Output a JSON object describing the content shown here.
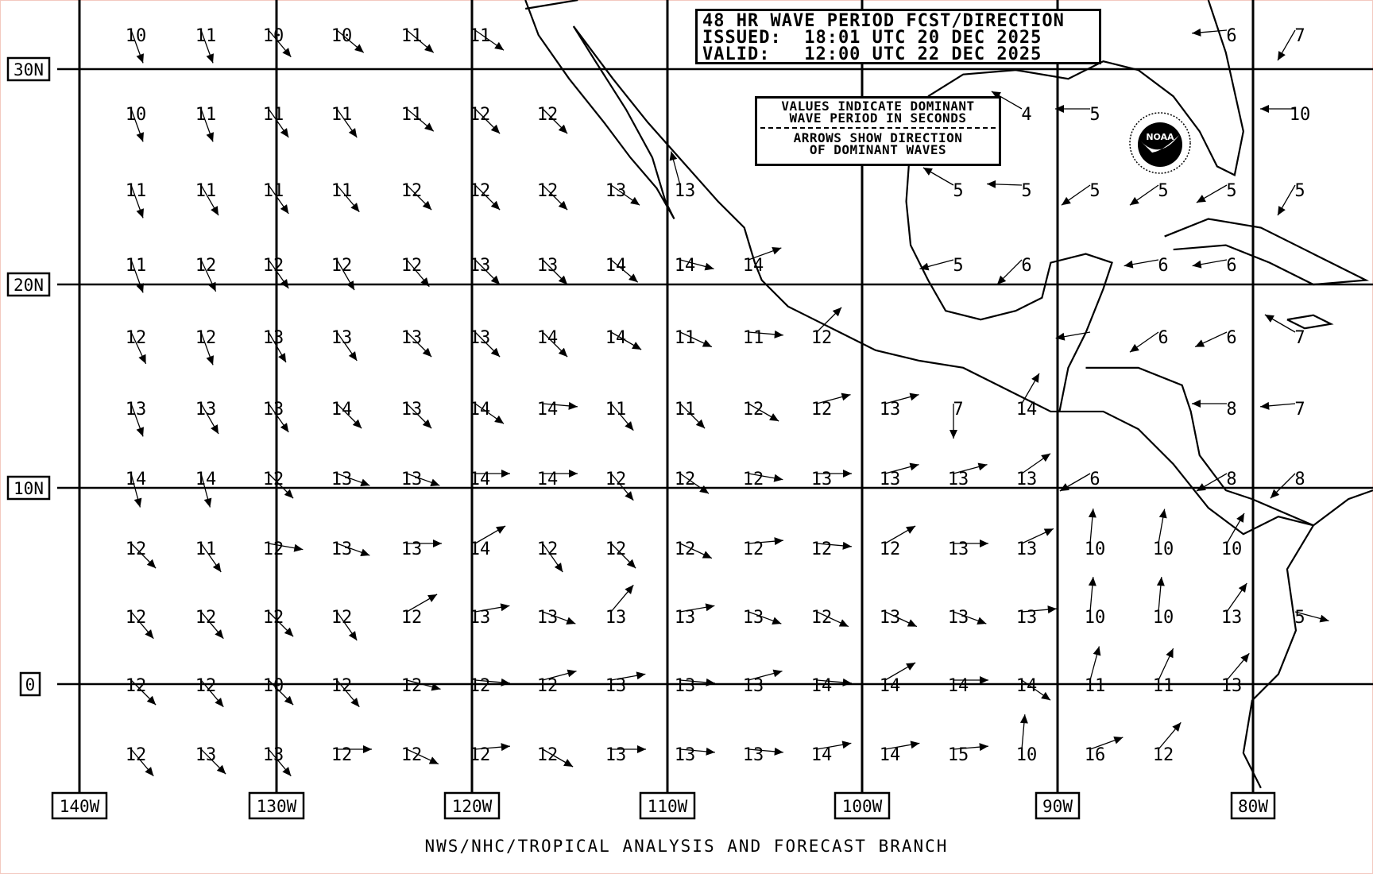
{
  "title": {
    "line1": "48 HR WAVE PERIOD FCST/DIRECTION",
    "line2": "ISSUED:  18:01 UTC 20 DEC 2025",
    "line3": "VALID:   12:00 UTC 22 DEC 2025"
  },
  "legend": {
    "line1": "VALUES INDICATE DOMINANT",
    "line2": "WAVE PERIOD IN SECONDS",
    "line3": "ARROWS SHOW DIRECTION",
    "line4": "OF DOMINANT WAVES"
  },
  "footer": "NWS/NHC/TROPICAL ANALYSIS AND FORECAST BRANCH",
  "logo_text": "NOAA",
  "lat_labels": [
    "30N",
    "20N",
    "10N",
    "0"
  ],
  "lon_labels": [
    "140W",
    "130W",
    "120W",
    "110W",
    "100W",
    "90W",
    "80W"
  ],
  "chart_data": {
    "type": "map",
    "description_units": "values = dominant wave period (s); dir = compass direction arrow points toward (deg)",
    "rows": [
      [
        [
          10,
          160
        ],
        [
          11,
          160
        ],
        [
          10,
          140
        ],
        [
          10,
          130
        ],
        [
          11,
          130
        ],
        [
          11,
          125
        ],
        null,
        null,
        null,
        null,
        null,
        null,
        null,
        null,
        null,
        null,
        [
          6,
          265
        ],
        [
          7,
          210
        ]
      ],
      [
        [
          10,
          160
        ],
        [
          11,
          160
        ],
        [
          11,
          145
        ],
        [
          11,
          145
        ],
        [
          11,
          130
        ],
        [
          12,
          135
        ],
        [
          12,
          135
        ],
        null,
        null,
        null,
        null,
        null,
        null,
        [
          4,
          300
        ],
        [
          5,
          270
        ],
        null,
        null,
        [
          10,
          270
        ]
      ],
      [
        [
          11,
          160
        ],
        [
          11,
          150
        ],
        [
          11,
          145
        ],
        [
          11,
          140
        ],
        [
          12,
          135
        ],
        [
          12,
          135
        ],
        [
          12,
          135
        ],
        [
          13,
          125
        ],
        [
          13,
          345
        ],
        null,
        null,
        null,
        [
          5,
          300
        ],
        [
          5,
          272
        ],
        [
          5,
          235
        ],
        [
          5,
          235
        ],
        [
          5,
          240
        ],
        [
          5,
          210
        ]
      ],
      [
        [
          11,
          160
        ],
        [
          12,
          155
        ],
        [
          12,
          145
        ],
        [
          12,
          150
        ],
        [
          12,
          140
        ],
        [
          13,
          135
        ],
        [
          13,
          135
        ],
        [
          14,
          130
        ],
        [
          14,
          105
        ],
        [
          14,
          70
        ],
        null,
        null,
        [
          5,
          255
        ],
        [
          6,
          225
        ],
        null,
        [
          6,
          260
        ],
        [
          6,
          260
        ],
        null
      ],
      [
        [
          12,
          155
        ],
        [
          12,
          160
        ],
        [
          13,
          150
        ],
        [
          13,
          145
        ],
        [
          13,
          135
        ],
        [
          13,
          135
        ],
        [
          14,
          135
        ],
        [
          14,
          120
        ],
        [
          11,
          115
        ],
        [
          11,
          95
        ],
        [
          12,
          45
        ],
        null,
        null,
        null,
        [
          "",
          260
        ],
        [
          6,
          235
        ],
        [
          6,
          245
        ],
        [
          7,
          300
        ]
      ],
      [
        [
          13,
          160
        ],
        [
          13,
          150
        ],
        [
          13,
          145
        ],
        [
          14,
          135
        ],
        [
          13,
          135
        ],
        [
          14,
          125
        ],
        [
          14,
          95
        ],
        [
          11,
          140
        ],
        [
          11,
          135
        ],
        [
          12,
          120
        ],
        [
          12,
          75
        ],
        [
          13,
          75
        ],
        [
          7,
          180
        ],
        [
          14,
          30
        ],
        null,
        null,
        [
          8,
          270
        ],
        [
          7,
          265
        ]
      ],
      [
        [
          14,
          165
        ],
        [
          14,
          165
        ],
        [
          12,
          135
        ],
        [
          13,
          110
        ],
        [
          13,
          110
        ],
        [
          14,
          90
        ],
        [
          14,
          90
        ],
        [
          12,
          140
        ],
        [
          12,
          125
        ],
        [
          12,
          100
        ],
        [
          13,
          90
        ],
        [
          13,
          75
        ],
        [
          13,
          75
        ],
        [
          13,
          55
        ],
        [
          6,
          240
        ],
        null,
        [
          8,
          240
        ],
        [
          8,
          225
        ]
      ],
      [
        [
          12,
          135
        ],
        [
          11,
          145
        ],
        [
          12,
          100
        ],
        [
          13,
          110
        ],
        [
          13,
          90
        ],
        [
          14,
          60
        ],
        [
          12,
          145
        ],
        [
          12,
          135
        ],
        [
          12,
          115
        ],
        [
          12,
          85
        ],
        [
          12,
          95
        ],
        [
          12,
          60
        ],
        [
          13,
          90
        ],
        [
          13,
          65
        ],
        [
          10,
          5
        ],
        [
          10,
          10
        ],
        [
          10,
          30
        ],
        null
      ],
      [
        [
          12,
          140
        ],
        [
          12,
          140
        ],
        [
          12,
          135
        ],
        [
          12,
          145
        ],
        [
          12,
          60
        ],
        [
          13,
          80
        ],
        [
          13,
          110
        ],
        [
          13,
          40
        ],
        [
          13,
          80
        ],
        [
          13,
          110
        ],
        [
          12,
          115
        ],
        [
          13,
          115
        ],
        [
          13,
          110
        ],
        [
          13,
          85
        ],
        [
          10,
          5
        ],
        [
          10,
          5
        ],
        [
          13,
          35
        ],
        [
          5,
          105
        ]
      ],
      [
        [
          12,
          135
        ],
        [
          12,
          140
        ],
        [
          10,
          135
        ],
        [
          12,
          140
        ],
        [
          12,
          105
        ],
        [
          12,
          95
        ],
        [
          12,
          75
        ],
        [
          13,
          80
        ],
        [
          13,
          95
        ],
        [
          13,
          75
        ],
        [
          14,
          95
        ],
        [
          14,
          60
        ],
        [
          14,
          90
        ],
        [
          14,
          125
        ],
        [
          11,
          15
        ],
        [
          11,
          25
        ],
        [
          13,
          40
        ],
        null
      ],
      [
        [
          12,
          140
        ],
        [
          13,
          135
        ],
        [
          13,
          140
        ],
        [
          12,
          90
        ],
        [
          12,
          115
        ],
        [
          12,
          85
        ],
        [
          12,
          120
        ],
        [
          13,
          90
        ],
        [
          13,
          95
        ],
        [
          13,
          95
        ],
        [
          14,
          80
        ],
        [
          14,
          80
        ],
        [
          15,
          85
        ],
        [
          10,
          5
        ],
        [
          16,
          70
        ],
        [
          12,
          40
        ],
        null,
        null
      ]
    ]
  }
}
